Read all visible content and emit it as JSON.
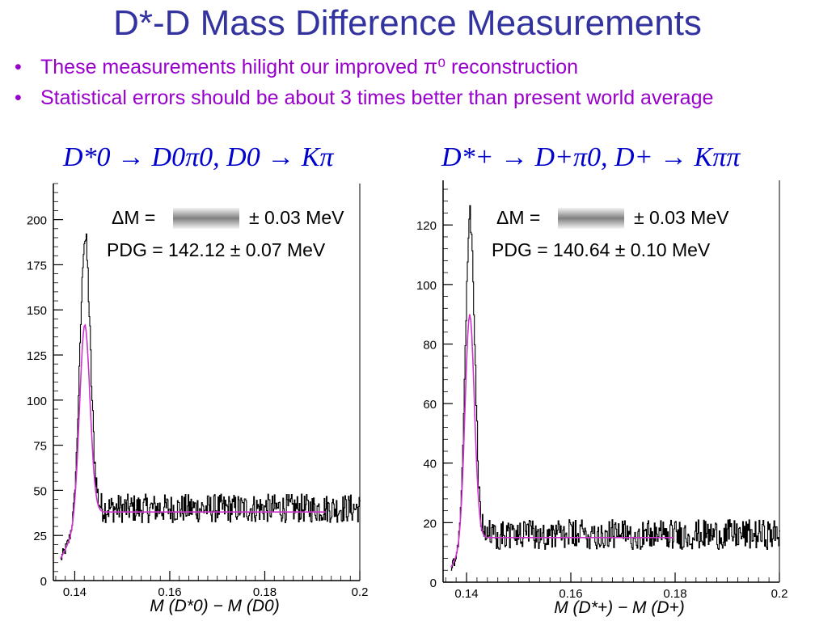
{
  "slide": {
    "title": "D*-D Mass Difference Measurements",
    "bullets": [
      "These measurements hilight our improved π⁰ reconstruction",
      "Statistical errors should be about 3 times better than present world average"
    ],
    "bullet_symbol": "•",
    "colors": {
      "title": "#3333a0",
      "bullets": "#9900cc",
      "formula": "#0000cc",
      "histogram": "#000000",
      "fit": "#cc33cc"
    }
  },
  "chart_data": [
    {
      "type": "line",
      "decay_formula": "D*0 → D0π0,   D0 → Kπ",
      "annotation": {
        "line1_label": "ΔM  =",
        "line1_error": "± 0.03 MeV",
        "line1_value_hidden": true,
        "line2": "PDG =  142.12  ±  0.07 MeV"
      },
      "xlabel": "M (D*0) − M (D0)",
      "xlim": [
        0.1355,
        0.2
      ],
      "ylim": [
        0,
        220
      ],
      "xticks": [
        0.14,
        0.16,
        0.18,
        0.2
      ],
      "xtick_labels": [
        "0.14",
        "0.16",
        "0.18",
        "0.2"
      ],
      "yticks": [
        0,
        25,
        50,
        75,
        100,
        125,
        150,
        175,
        200
      ],
      "ytick_labels": [
        "0",
        "25",
        "50",
        "75",
        "100",
        "125",
        "150",
        "175",
        "200"
      ],
      "series": [
        {
          "role": "histogram",
          "peak_x": 0.1421,
          "peak_y": 190,
          "peak_width": 0.0011,
          "baseline_start_x": 0.137,
          "baseline_start_y": 12,
          "background_level": 40,
          "noise_amplitude": 8,
          "bins": 420
        },
        {
          "role": "fit",
          "peak_x": 0.1421,
          "peak_y": 142,
          "peak_width": 0.0011,
          "background_level": 38,
          "x_end": 0.193
        }
      ]
    },
    {
      "type": "line",
      "decay_formula": "D*+ → D+π0,   D+ → Kππ",
      "annotation": {
        "line1_label": "ΔM  =",
        "line1_error": "± 0.03 MeV",
        "line1_value_hidden": true,
        "line2": "PDG =  140.64  ±  0.10 MeV"
      },
      "xlabel": "M (D*+) − M (D+)",
      "xlim": [
        0.1355,
        0.2
      ],
      "ylim": [
        0,
        135
      ],
      "xticks": [
        0.14,
        0.16,
        0.18,
        0.2
      ],
      "xtick_labels": [
        "0.14",
        "0.16",
        "0.18",
        "0.2"
      ],
      "yticks": [
        0,
        20,
        40,
        60,
        80,
        100,
        120
      ],
      "ytick_labels": [
        "0",
        "20",
        "40",
        "60",
        "80",
        "100",
        "120"
      ],
      "series": [
        {
          "role": "histogram",
          "peak_x": 0.1406,
          "peak_y": 123,
          "peak_width": 0.0009,
          "baseline_start_x": 0.137,
          "baseline_start_y": 5,
          "background_level": 16,
          "noise_amplitude": 5,
          "bins": 420
        },
        {
          "role": "fit",
          "peak_x": 0.1406,
          "peak_y": 90,
          "peak_width": 0.0009,
          "background_level": 15,
          "x_end": 0.18
        }
      ]
    }
  ]
}
